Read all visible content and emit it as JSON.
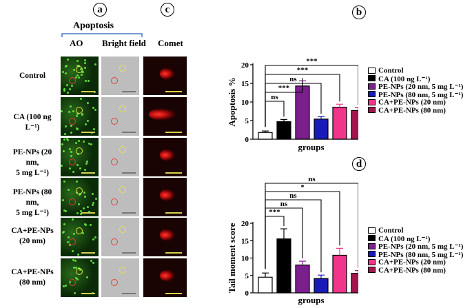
{
  "panel_labels": {
    "a": "a",
    "b": "b",
    "c": "c",
    "d": "d"
  },
  "left": {
    "title": "Apoptosis",
    "col_ao": "AO",
    "col_bf": "Bright field",
    "col_comet": "Comet",
    "rows": [
      {
        "line1": "Control",
        "line2": ""
      },
      {
        "line1": "CA (100 ng L⁻¹)",
        "line2": ""
      },
      {
        "line1": "PE-NPs (20 nm,",
        "line2": "5 mg L⁻¹)"
      },
      {
        "line1": "PE-NPs (80 nm,",
        "line2": "5 mg L⁻¹)"
      },
      {
        "line1": "CA+PE-NPs",
        "line2": "(20 nm)"
      },
      {
        "line1": "CA+PE-NPs",
        "line2": "(80 nm)"
      }
    ]
  },
  "legend": {
    "entries": [
      {
        "label": "Control",
        "color": "#ffffff"
      },
      {
        "label": "CA (100 ng L⁻¹)",
        "color": "#000000"
      },
      {
        "label": "PE-NPs (20 nm, 5 mg L⁻¹)",
        "color": "#7b1f8c"
      },
      {
        "label": "PE-NPs (80 nm, 5 mg L⁻¹)",
        "color": "#1a1ab8"
      },
      {
        "label": "CA+PE-NPs (20 nm)",
        "color": "#f0358a"
      },
      {
        "label": "CA+PE-NPs (80 nm)",
        "color": "#a3154f"
      }
    ]
  },
  "chart_data": [
    {
      "panel": "b",
      "type": "bar",
      "ylabel": "Apoptosis %",
      "xlabel": "groups",
      "ylim": [
        0,
        20
      ],
      "yticks": [
        0,
        5,
        10,
        15,
        20
      ],
      "categories": [
        "Control",
        "CA (100 ng L⁻¹)",
        "PE-NPs (20 nm, 5 mg L⁻¹)",
        "PE-NPs (80 nm, 5 mg L⁻¹)",
        "CA+PE-NPs (20 nm)",
        "CA+PE-NPs (80 nm)"
      ],
      "values": [
        1.8,
        4.7,
        14.3,
        5.4,
        8.6,
        7.7
      ],
      "errors": [
        0.4,
        0.6,
        1.4,
        0.7,
        0.8,
        0.8
      ],
      "colors": [
        "#ffffff",
        "#000000",
        "#7b1f8c",
        "#1a1ab8",
        "#f0358a",
        "#a3154f"
      ],
      "comparisons": [
        {
          "to": 1,
          "label": "ns"
        },
        {
          "to": 2,
          "label": "***"
        },
        {
          "to": 3,
          "label": "ns"
        },
        {
          "to": 4,
          "label": "***"
        },
        {
          "to": 5,
          "label": "***"
        }
      ]
    },
    {
      "panel": "d",
      "type": "bar",
      "ylabel": "Tail moment score",
      "xlabel": "groups",
      "ylim": [
        0,
        20
      ],
      "yticks": [
        0,
        5,
        10,
        15,
        20
      ],
      "categories": [
        "Control",
        "CA (100 ng L⁻¹)",
        "PE-NPs (20 nm, 5 mg L⁻¹)",
        "PE-NPs (80 nm, 5 mg L⁻¹)",
        "CA+PE-NPs (20 nm)",
        "CA+PE-NPs (80 nm)"
      ],
      "values": [
        4.5,
        15.5,
        8.0,
        4.1,
        10.8,
        5.6
      ],
      "errors": [
        1.2,
        2.9,
        1.1,
        1.0,
        2.0,
        0.8
      ],
      "colors": [
        "#ffffff",
        "#000000",
        "#7b1f8c",
        "#1a1ab8",
        "#f0358a",
        "#a3154f"
      ],
      "comparisons": [
        {
          "to": 1,
          "label": "***"
        },
        {
          "to": 2,
          "label": "ns"
        },
        {
          "to": 3,
          "label": "ns"
        },
        {
          "to": 4,
          "label": "*"
        },
        {
          "to": 5,
          "label": "ns"
        }
      ]
    }
  ]
}
